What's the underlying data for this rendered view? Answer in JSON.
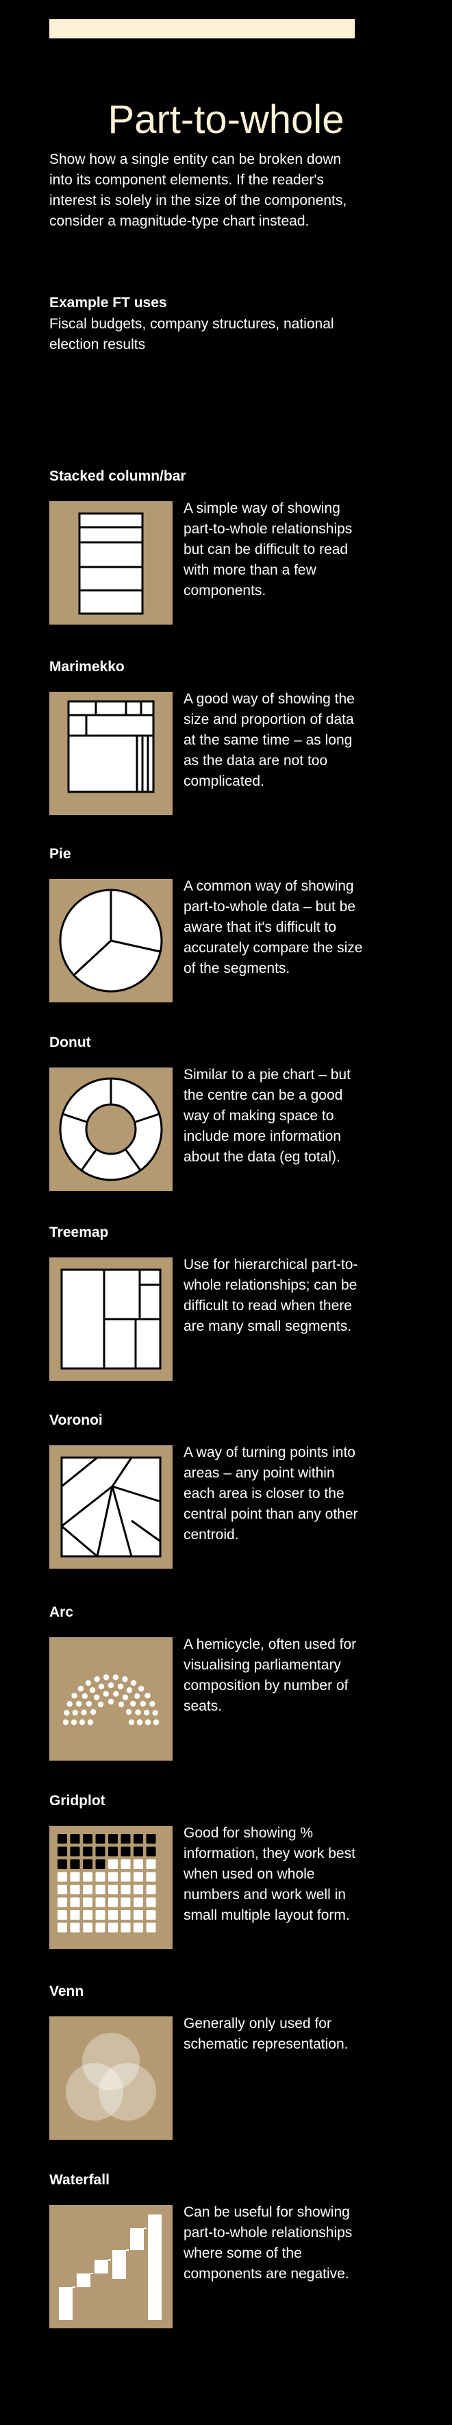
{
  "page": {
    "title": "Part-to-whole",
    "intro": "Show how a single entity can be broken down into its component elements. If the reader's interest is solely in the size of the components, consider a magnitude-type chart instead.",
    "uses_heading": "Example FT uses",
    "uses_text": "Fiscal budgets, company structures, national election results"
  },
  "colors": {
    "background": "#000000",
    "accent": "#fdf1d6",
    "thumb": "#b39a72",
    "ink": "#ffffff"
  },
  "charts": [
    {
      "title": "Stacked column/bar",
      "icon": "stacked-column-icon",
      "description": "A simple way of showing part-to-whole relationships but can be difficult to read with more than a few components."
    },
    {
      "title": "Marimekko",
      "icon": "marimekko-icon",
      "description": "A good way of showing the size and proportion of data at the same time – as long as the data are not too complicated."
    },
    {
      "title": "Pie",
      "icon": "pie-icon",
      "description": "A common way of showing part-to-whole data – but be aware that it's difficult to accurately compare the size of the segments."
    },
    {
      "title": "Donut",
      "icon": "donut-icon",
      "description": "Similar to a pie chart – but the centre can be a good way of making space to include more information about the data (eg total)."
    },
    {
      "title": "Treemap",
      "icon": "treemap-icon",
      "description": "Use for hierarchical part-to-whole relationships; can be difficult to read when there are many small segments."
    },
    {
      "title": "Voronoi",
      "icon": "voronoi-icon",
      "description": "A way of turning points into areas – any point within each area is closer to the central point than any other centroid."
    },
    {
      "title": "Arc",
      "icon": "arc-icon",
      "description": "A hemicycle, often used for visualising parliamentary composition by number of seats."
    },
    {
      "title": "Gridplot",
      "icon": "gridplot-icon",
      "description": "Good for showing % information, they work best when used on whole numbers and work well in small multiple layout form."
    },
    {
      "title": "Venn",
      "icon": "venn-icon",
      "description": "Generally only used for schematic representation."
    },
    {
      "title": "Waterfall",
      "icon": "waterfall-icon",
      "description": "Can be useful for showing part-to-whole relationships where some of the components are negative."
    }
  ]
}
